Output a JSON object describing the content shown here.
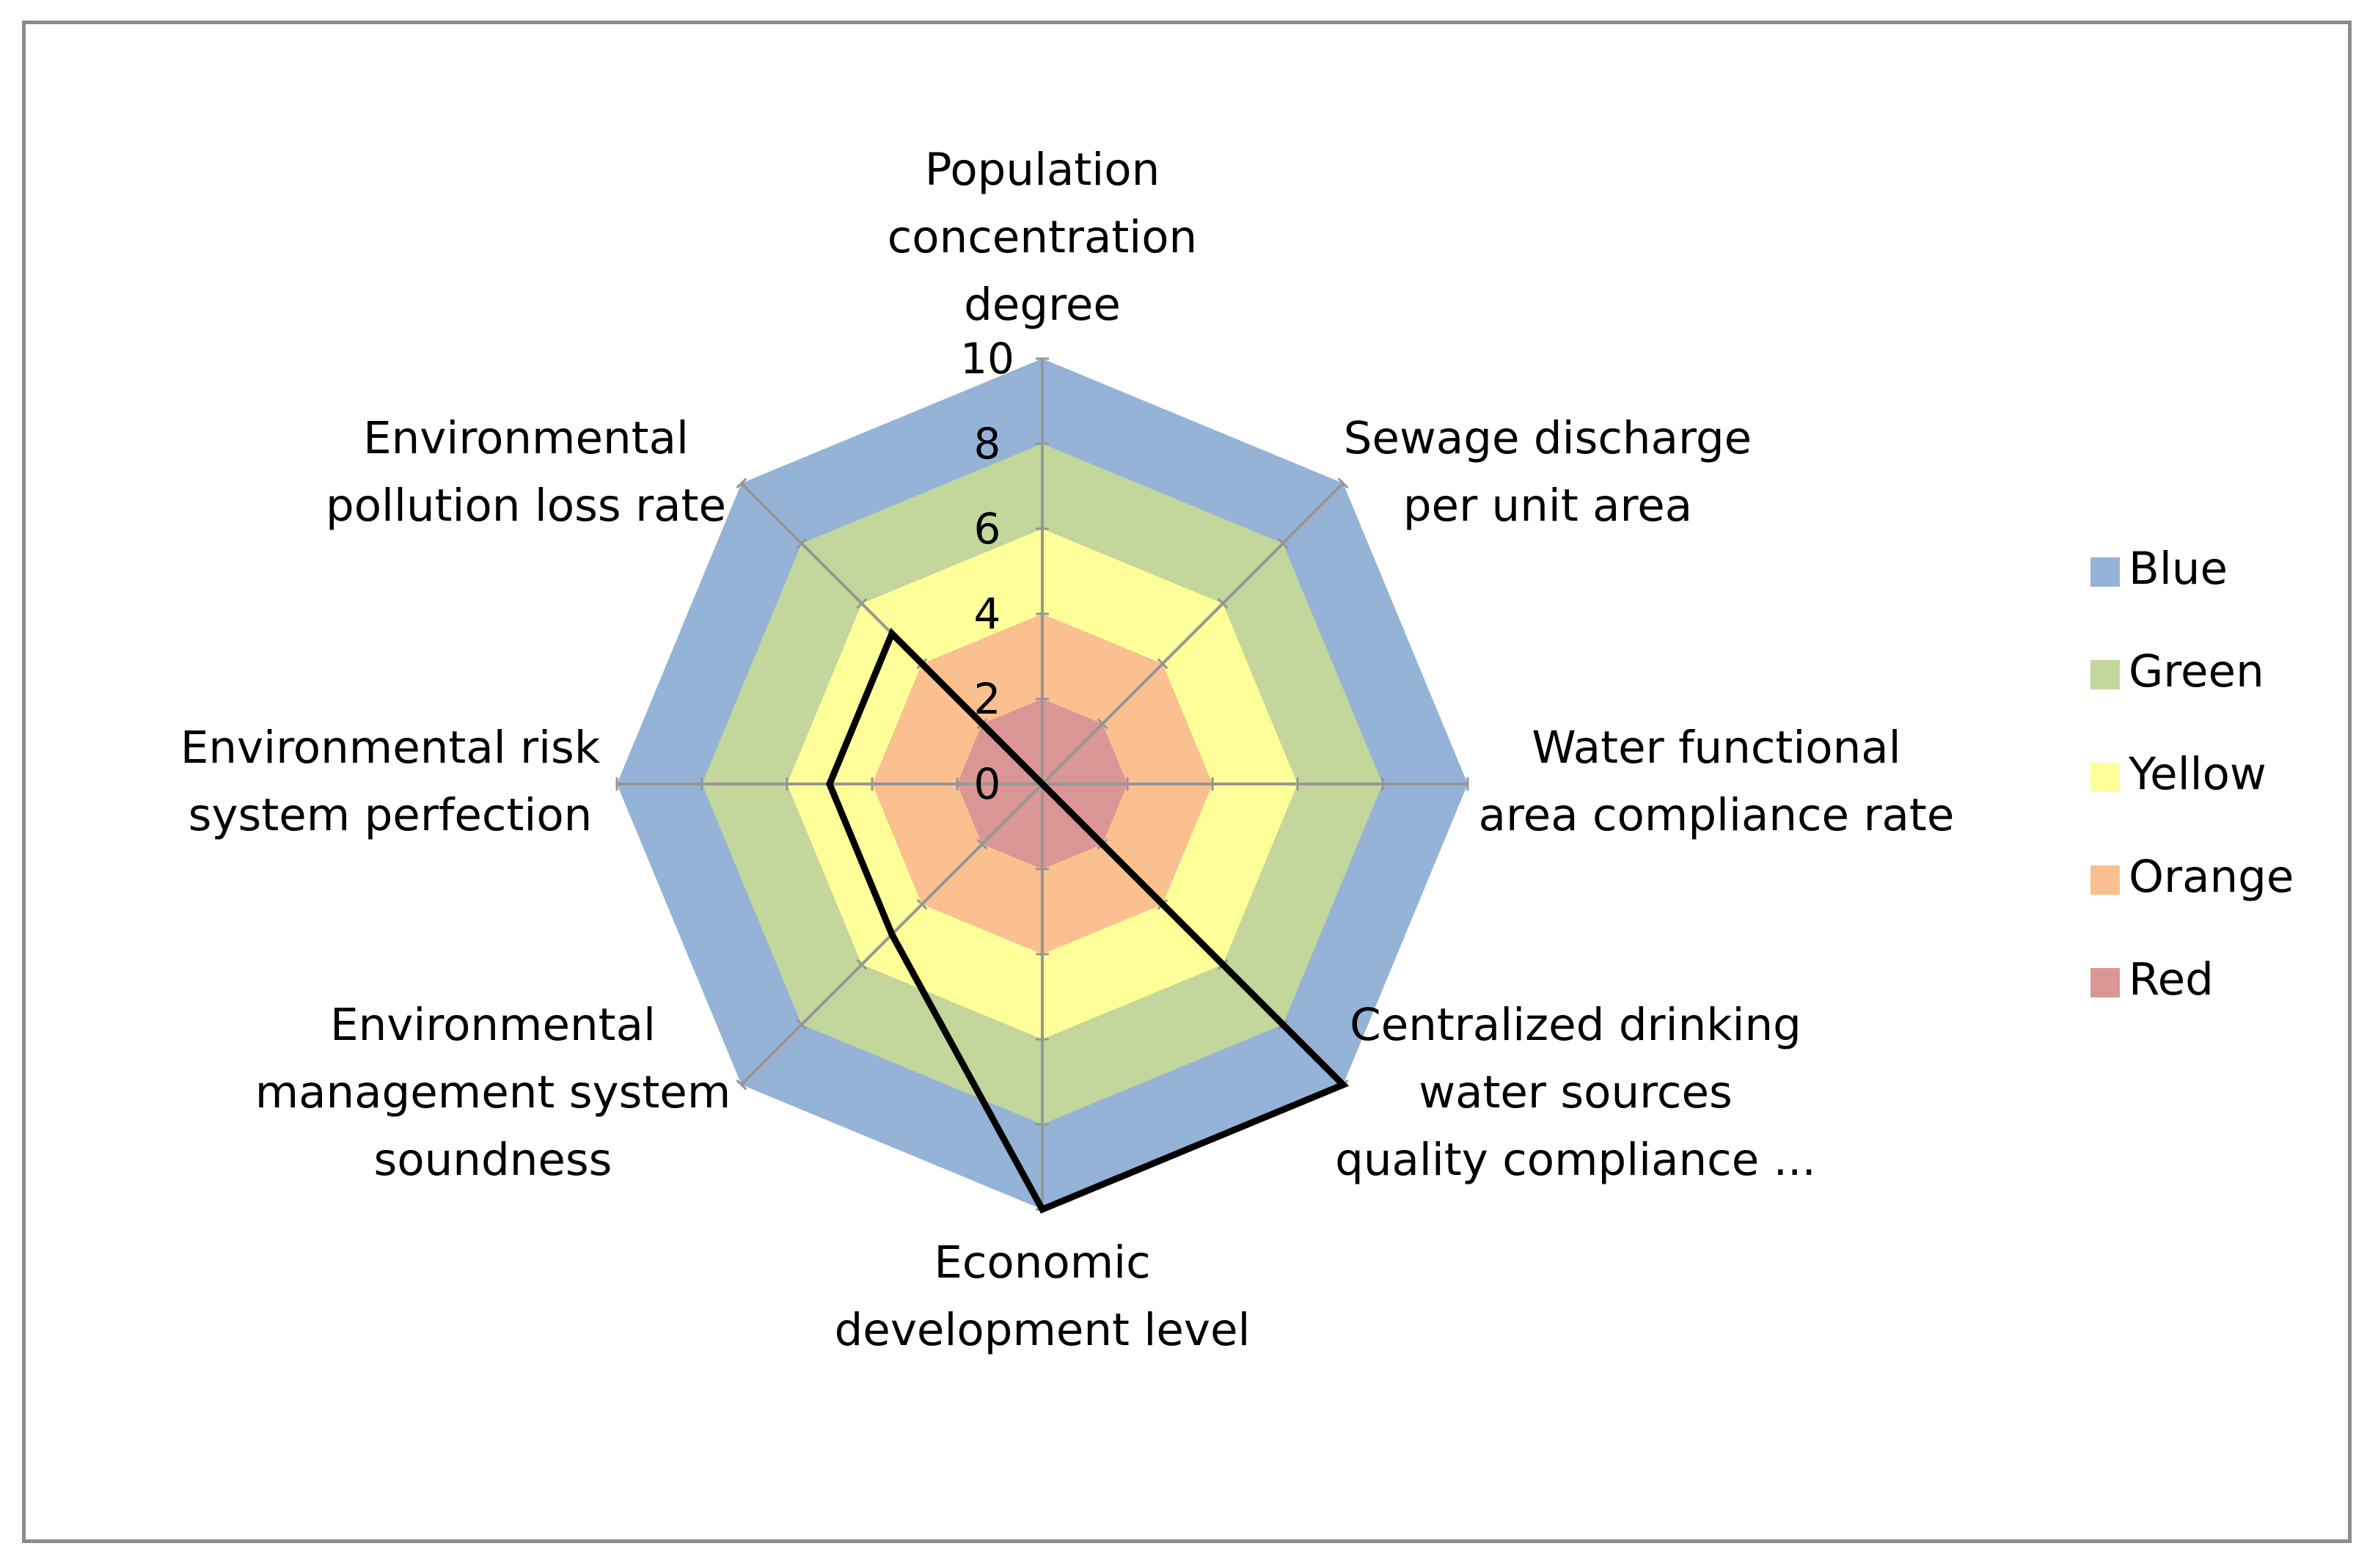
{
  "chart_data": {
    "type": "radar",
    "title": "",
    "axes": [
      {
        "label": "Population concentration degree",
        "lines": [
          "Population",
          "concentration",
          "degree"
        ]
      },
      {
        "label": "Sewage discharge per unit area",
        "lines": [
          "Sewage discharge",
          "per unit area"
        ]
      },
      {
        "label": "Water functional area compliance rate",
        "lines": [
          "Water functional",
          "area compliance rate"
        ]
      },
      {
        "label": "Centralized drinking water sources quality compliance ...",
        "lines": [
          "Centralized drinking",
          "water sources",
          "quality compliance ..."
        ]
      },
      {
        "label": "Economic development level",
        "lines": [
          "Economic",
          "development level"
        ]
      },
      {
        "label": "Environmental management system soundness",
        "lines": [
          "Environmental",
          "management system",
          "soundness"
        ]
      },
      {
        "label": "Environmental risk system perfection",
        "lines": [
          "Environmental risk",
          "system perfection"
        ]
      },
      {
        "label": "Environmental pollution loss rate",
        "lines": [
          "Environmental",
          "pollution loss rate"
        ]
      }
    ],
    "rlim": [
      0,
      10
    ],
    "ticks": [
      0,
      2,
      4,
      6,
      8,
      10
    ],
    "tick_labels": [
      "0",
      "2",
      "4",
      "6",
      "8",
      "10"
    ],
    "bands": [
      {
        "name": "Blue",
        "from": 8,
        "to": 10,
        "color": "#95b3d7"
      },
      {
        "name": "Green",
        "from": 6,
        "to": 8,
        "color": "#c3d69b"
      },
      {
        "name": "Yellow",
        "from": 4,
        "to": 6,
        "color": "#ffff99"
      },
      {
        "name": "Orange",
        "from": 2,
        "to": 4,
        "color": "#fac090"
      },
      {
        "name": "Red",
        "from": 0,
        "to": 2,
        "color": "#d99694"
      }
    ],
    "series": [
      {
        "values": [
          0,
          0,
          0,
          10,
          10,
          5,
          5,
          5
        ],
        "color": "#000000"
      }
    ],
    "legend": {
      "position": "right",
      "entries": [
        "Blue",
        "Green",
        "Yellow",
        "Orange",
        "Red"
      ]
    },
    "grid_color": "#969696"
  }
}
